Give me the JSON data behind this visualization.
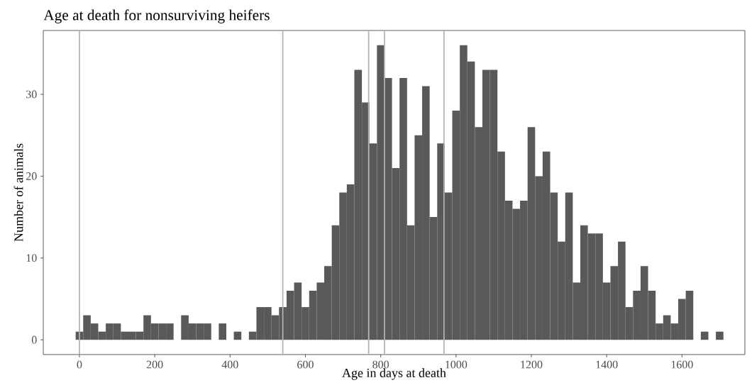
{
  "chart_data": {
    "type": "histogram",
    "title": "Age at death for nonsurviving heifers",
    "xlabel": "Age in days at death",
    "ylabel": "Number of animals",
    "bins": [
      -10,
      10,
      30,
      50,
      70,
      90,
      110,
      130,
      150,
      170,
      190,
      210,
      230,
      250,
      270,
      290,
      310,
      330,
      350,
      370,
      390,
      410,
      430,
      450,
      470,
      490,
      510,
      530,
      550,
      570,
      590,
      610,
      630,
      650,
      670,
      690,
      710,
      730,
      750,
      770,
      790,
      810,
      830,
      850,
      870,
      890,
      910,
      930,
      950,
      970,
      990,
      1010,
      1030,
      1050,
      1070,
      1090,
      1110,
      1130,
      1150,
      1170,
      1190,
      1210,
      1230,
      1250,
      1270,
      1290,
      1310,
      1330,
      1350,
      1370,
      1390,
      1410,
      1430,
      1450,
      1470,
      1490,
      1510,
      1530,
      1550,
      1570,
      1590,
      1610,
      1630,
      1650,
      1670,
      1690,
      1710
    ],
    "values": [
      1,
      3,
      2,
      1,
      2,
      2,
      1,
      1,
      1,
      3,
      2,
      2,
      2,
      0,
      3,
      2,
      2,
      2,
      0,
      2,
      0,
      1,
      0,
      1,
      4,
      4,
      3,
      4,
      6,
      7,
      4,
      6,
      7,
      9,
      14,
      18,
      19,
      33,
      29,
      24,
      36,
      32,
      21,
      32,
      14,
      25,
      31,
      15,
      24,
      18,
      28,
      36,
      34,
      26,
      33,
      33,
      23,
      17,
      16,
      17,
      26,
      20,
      23,
      18,
      12,
      18,
      7,
      14,
      13,
      13,
      7,
      9,
      12,
      4,
      6,
      9,
      6,
      2,
      3,
      2,
      5,
      6,
      0,
      1,
      0,
      1
    ],
    "color": "#595959",
    "xlim": [
      -96,
      1767
    ],
    "ylim": [
      -1.8,
      37.8
    ],
    "xticks": [
      0,
      200,
      400,
      600,
      800,
      1000,
      1200,
      1400,
      1600
    ],
    "yticks": [
      0,
      10,
      20,
      30
    ],
    "ref_lines": [
      {
        "axis": "x",
        "value": 0,
        "color": "#b3b3b3"
      },
      {
        "axis": "x",
        "value": 540,
        "color": "#b3b3b3"
      },
      {
        "axis": "x",
        "value": 768,
        "color": "#b3b3b3"
      },
      {
        "axis": "x",
        "value": 810,
        "color": "#b3b3b3"
      },
      {
        "axis": "x",
        "value": 968,
        "color": "#b3b3b3"
      }
    ]
  }
}
